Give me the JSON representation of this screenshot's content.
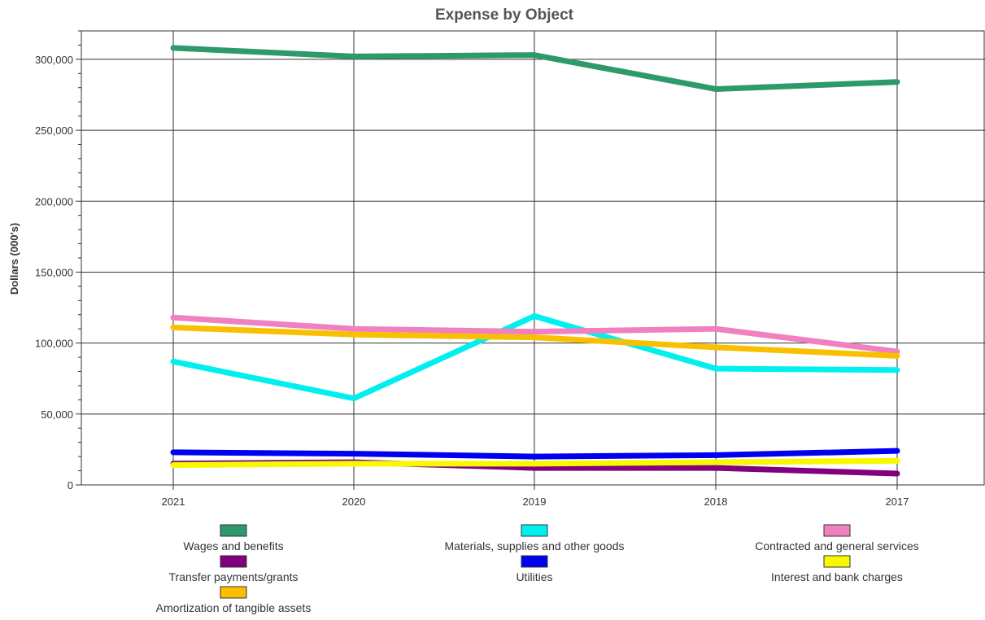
{
  "chart_data": {
    "type": "line",
    "title": "Expense by Object",
    "xlabel": "",
    "ylabel": "Dollars (000's)",
    "categories": [
      "2021",
      "2020",
      "2019",
      "2018",
      "2017"
    ],
    "ylim": [
      0,
      320000
    ],
    "yticks": [
      0,
      50000,
      100000,
      150000,
      200000,
      250000,
      300000
    ],
    "ytick_labels": [
      "0",
      "50,000",
      "100,000",
      "150,000",
      "200,000",
      "250,000",
      "300,000"
    ],
    "grid": true,
    "legend_position": "bottom",
    "series": [
      {
        "name": "Wages and benefits",
        "color": "#2e9a6b",
        "values": [
          308000,
          302000,
          303000,
          279000,
          284000
        ]
      },
      {
        "name": "Materials, supplies and other goods",
        "color": "#00f0f0",
        "values": [
          87000,
          61000,
          119000,
          82000,
          81000
        ]
      },
      {
        "name": "Contracted and general services",
        "color": "#f080c0",
        "values": [
          118000,
          110000,
          108000,
          110000,
          94000
        ]
      },
      {
        "name": "Transfer payments/grants",
        "color": "#800080",
        "values": [
          15000,
          16000,
          12000,
          12000,
          8000
        ]
      },
      {
        "name": "Utilities",
        "color": "#0000f0",
        "values": [
          23000,
          22000,
          20000,
          21000,
          24000
        ]
      },
      {
        "name": "Interest and bank charges",
        "color": "#f8f800",
        "values": [
          14000,
          15000,
          15000,
          16000,
          17000
        ]
      },
      {
        "name": "Amortization of tangible assets",
        "color": "#f8c000",
        "values": [
          111000,
          106000,
          104000,
          97000,
          91000
        ]
      }
    ]
  }
}
